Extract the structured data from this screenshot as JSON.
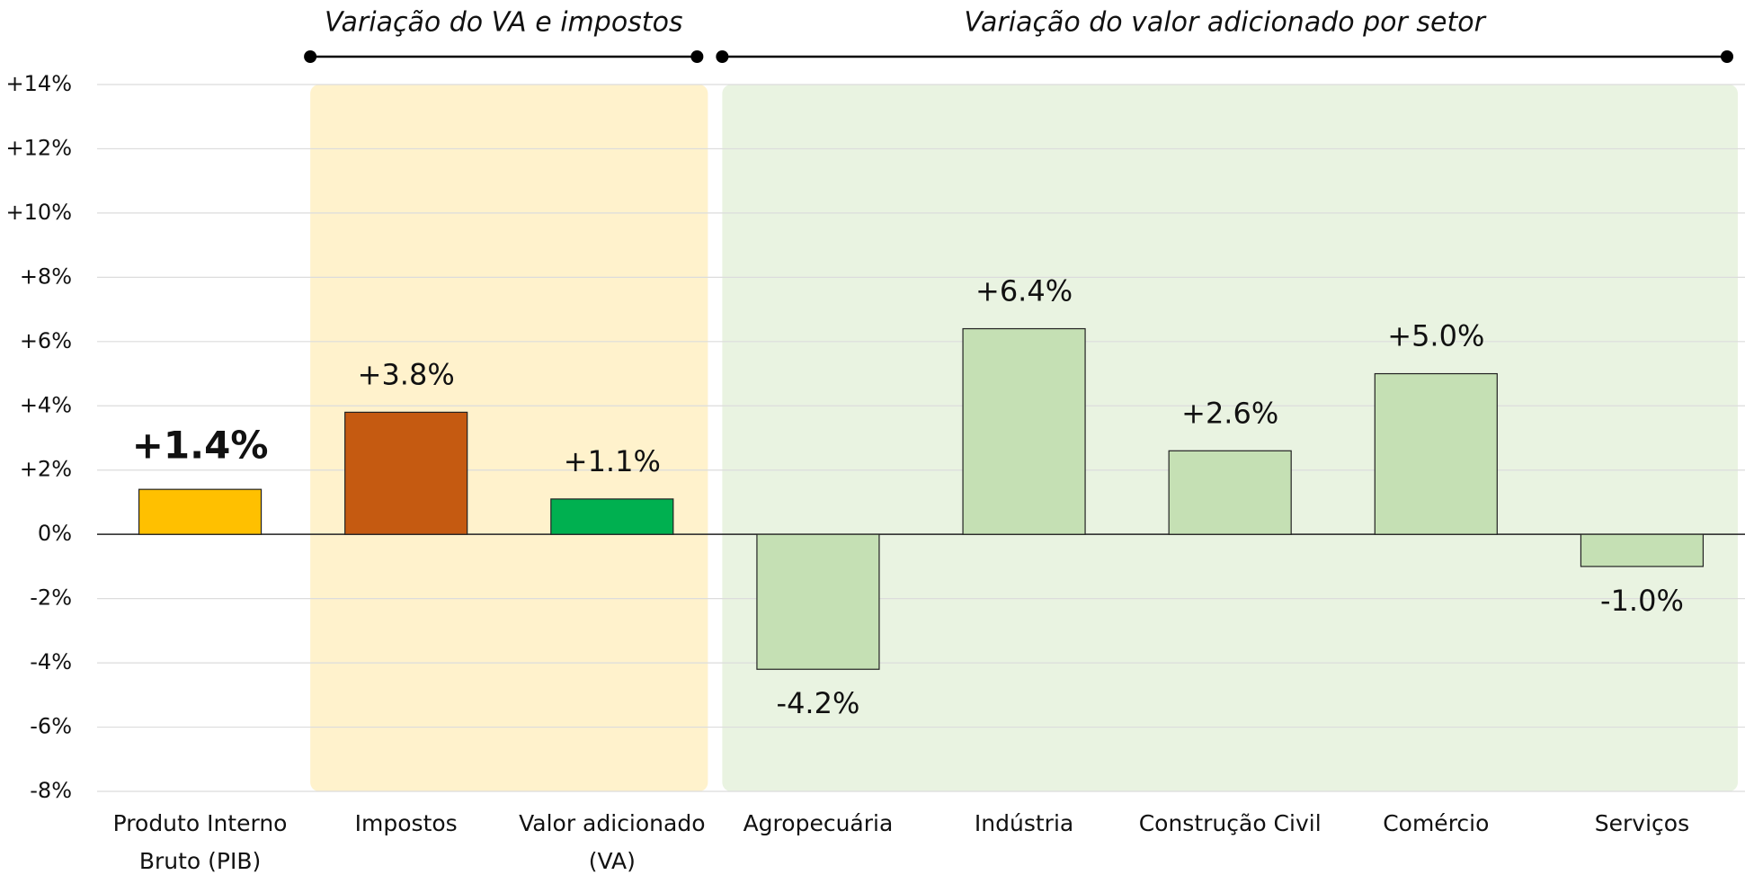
{
  "chart_data": {
    "type": "bar",
    "categories": [
      "Produto Interno Bruto (PIB)",
      "Impostos",
      "Valor adicionado (VA)",
      "Agropecuária",
      "Indústria",
      "Construção Civil",
      "Comércio",
      "Serviços"
    ],
    "values": [
      1.4,
      3.8,
      1.1,
      -4.2,
      6.4,
      2.6,
      5.0,
      -1.0
    ],
    "value_labels": [
      "+1.4%",
      "+3.8%",
      "+1.1%",
      "-4.2%",
      "+6.4%",
      "+2.6%",
      "+5.0%",
      "-1.0%"
    ],
    "colors": [
      "#ffc000",
      "#c55a11",
      "#00b050",
      "#c5e0b4",
      "#c5e0b4",
      "#c5e0b4",
      "#c5e0b4",
      "#c5e0b4"
    ],
    "ylim": [
      -8,
      14
    ],
    "yticks": [
      {
        "value": -8,
        "label": "-8%"
      },
      {
        "value": -6,
        "label": "-6%"
      },
      {
        "value": -4,
        "label": "-4%"
      },
      {
        "value": -2,
        "label": "-2%"
      },
      {
        "value": 0,
        "label": "0%"
      },
      {
        "value": 2,
        "label": "+2%"
      },
      {
        "value": 4,
        "label": "+4%"
      },
      {
        "value": 6,
        "label": "+6%"
      },
      {
        "value": 8,
        "label": "+8%"
      },
      {
        "value": 10,
        "label": "+10%"
      },
      {
        "value": 12,
        "label": "+12%"
      },
      {
        "value": 14,
        "label": "+14%"
      }
    ],
    "grid": true,
    "groups": [
      {
        "label": "Variação do VA e impostos",
        "color": "#fff2cc",
        "categories": [
          "Impostos",
          "Valor adicionado (VA)"
        ]
      },
      {
        "label": "Variação do valor adicionado por setor",
        "color": "#e9f3e1",
        "categories": [
          "Agropecuária",
          "Indústria",
          "Construção Civil",
          "Comércio",
          "Serviços"
        ]
      }
    ]
  }
}
